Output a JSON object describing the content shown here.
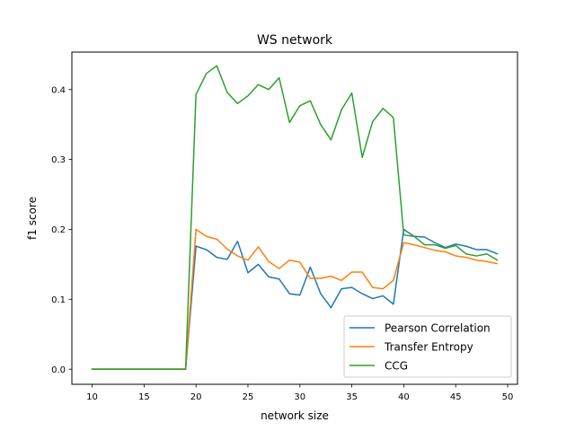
{
  "chart_data": {
    "type": "line",
    "title": "WS network",
    "xlabel": "network size",
    "ylabel": "f1 score",
    "xlim": [
      8.05,
      50.95
    ],
    "ylim": [
      -0.0216,
      0.4536
    ],
    "xticks": [
      10,
      15,
      20,
      25,
      30,
      35,
      40,
      45,
      50
    ],
    "yticks": [
      0.0,
      0.1,
      0.2,
      0.3,
      0.4
    ],
    "ytick_labels": [
      "0.0",
      "0.1",
      "0.2",
      "0.3",
      "0.4"
    ],
    "grid": false,
    "legend_position": "lower-right",
    "x": [
      10,
      11,
      12,
      13,
      14,
      15,
      16,
      17,
      18,
      19,
      20,
      21,
      22,
      23,
      24,
      25,
      26,
      27,
      28,
      29,
      30,
      31,
      32,
      33,
      34,
      35,
      36,
      37,
      38,
      39,
      40,
      41,
      42,
      43,
      44,
      45,
      46,
      47,
      48,
      49
    ],
    "series": [
      {
        "name": "Pearson Correlation",
        "color": "#1f77b4",
        "values": [
          0,
          0,
          0,
          0,
          0,
          0,
          0,
          0,
          0,
          0,
          0.176,
          0.171,
          0.16,
          0.157,
          0.183,
          0.138,
          0.15,
          0.132,
          0.129,
          0.108,
          0.106,
          0.146,
          0.108,
          0.088,
          0.115,
          0.117,
          0.108,
          0.101,
          0.105,
          0.093,
          0.2,
          0.19,
          0.189,
          0.181,
          0.174,
          0.179,
          0.176,
          0.171,
          0.171,
          0.165
        ]
      },
      {
        "name": "Transfer Entropy",
        "color": "#ff7f0e",
        "values": [
          0,
          0,
          0,
          0,
          0,
          0,
          0,
          0,
          0,
          0,
          0.2,
          0.19,
          0.186,
          0.172,
          0.162,
          0.156,
          0.175,
          0.154,
          0.144,
          0.156,
          0.153,
          0.13,
          0.13,
          0.133,
          0.127,
          0.139,
          0.139,
          0.117,
          0.115,
          0.127,
          0.181,
          0.178,
          0.174,
          0.17,
          0.168,
          0.162,
          0.16,
          0.156,
          0.154,
          0.151
        ]
      },
      {
        "name": "CCG",
        "color": "#2ca02c",
        "values": [
          0,
          0,
          0,
          0,
          0,
          0,
          0,
          0,
          0,
          0,
          0.393,
          0.423,
          0.434,
          0.396,
          0.38,
          0.391,
          0.407,
          0.4,
          0.417,
          0.353,
          0.377,
          0.384,
          0.35,
          0.328,
          0.371,
          0.395,
          0.303,
          0.354,
          0.373,
          0.36,
          0.192,
          0.19,
          0.178,
          0.178,
          0.173,
          0.177,
          0.165,
          0.162,
          0.165,
          0.156
        ]
      }
    ]
  }
}
